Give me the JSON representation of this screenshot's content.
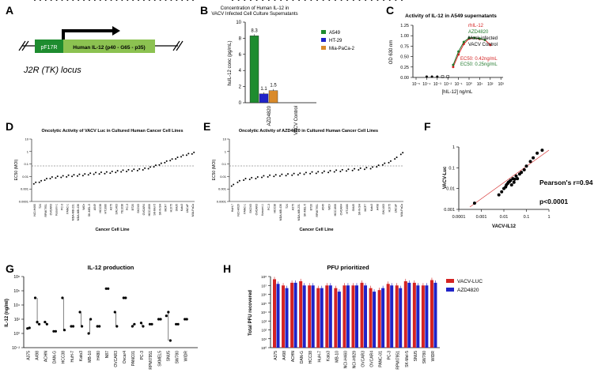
{
  "panels": {
    "A": "A",
    "B": "B",
    "C": "C",
    "D": "D",
    "E": "E",
    "F": "F",
    "G": "G",
    "H": "H"
  },
  "colors": {
    "green": "#1e8c2f",
    "blue": "#1f23c8",
    "orange": "#d98a2b",
    "red": "#d42323",
    "dark_green": "#237a2e"
  },
  "panel_a": {
    "promoter": "pF17R",
    "gene": "Human IL-12 (p40 - G65 - p35)",
    "locus": "J2R (TK) locus"
  },
  "chart_data": [
    {
      "id": "B",
      "type": "bar",
      "title": "Concentration of Human IL-12 in VACV Infected Cell Culture Supernatants",
      "ylabel": "huIL-12 conc (pg/mL)",
      "ylim": [
        0,
        10
      ],
      "yticks": [
        "0",
        "2",
        "4",
        "6",
        "8",
        "10"
      ],
      "categories": [
        "AZD4820",
        "VACV Control"
      ],
      "series": [
        {
          "name": "A549",
          "values": [
            8.3,
            0
          ]
        },
        {
          "name": "HT-29",
          "values": [
            1.1,
            0
          ]
        },
        {
          "name": "Mia-PaCa-2",
          "values": [
            1.5,
            0
          ]
        }
      ],
      "labels": [
        "8.3",
        "1.1",
        "1.5"
      ],
      "legend": [
        "A549",
        "HT-29",
        "Mia-PaCa-2"
      ]
    },
    {
      "id": "C",
      "type": "line",
      "title": "Activity of IL-12 in A549 supernatants",
      "ylabel": "OD 630 nm",
      "xlabel": "[hIL-12] ng/mL",
      "ylim": [
        0,
        1.25
      ],
      "yticks": [
        "0.00",
        "0.25",
        "0.50",
        "0.75",
        "1.00",
        "1.25"
      ],
      "xticks": [
        "10⁻⁵",
        "10⁻⁴",
        "10⁻³",
        "10⁻²",
        "10⁻¹",
        "10⁰",
        "10¹",
        "10²",
        "10³"
      ],
      "legend": [
        "rhIL-12",
        "AZD4820",
        "Mock infected",
        "VACV Control"
      ],
      "annotations": [
        "EC50: 0.42ng/mL",
        "EC50: 0.25ng/mL"
      ],
      "series": [
        {
          "name": "rhIL-12",
          "x": [
            -1.5,
            -1,
            -0.5,
            0,
            0.5,
            1,
            1.5,
            2
          ],
          "y": [
            0.25,
            0.55,
            0.8,
            0.93,
            0.95,
            0.92,
            0.9,
            0.78
          ]
        },
        {
          "name": "AZD4820",
          "x": [
            -1.5,
            -1,
            -0.5,
            0,
            0.5,
            1,
            1.5
          ],
          "y": [
            0.3,
            0.62,
            0.85,
            0.95,
            0.95,
            0.93,
            0.9
          ]
        },
        {
          "name": "Mock infected",
          "x": [
            -4,
            -3.5,
            -3
          ],
          "y": [
            0.02,
            0.02,
            0.02
          ]
        },
        {
          "name": "VACV Control",
          "x": [
            -2.5,
            -2
          ],
          "y": [
            0.02,
            0.02
          ]
        }
      ]
    },
    {
      "id": "D",
      "type": "scatter",
      "title": "Oncolytic Activity of VACV Luc in Cultured Human Cancer Cell Lines",
      "ylabel": "EC50 (MOI)",
      "xlabel": "Cancer Cell Line",
      "yticks": [
        "10",
        "1",
        "0.1",
        "0.01",
        "0.001",
        "0.0001"
      ],
      "categories": [
        "NCI-H460",
        "T24",
        "RPMI7951",
        "OVCAR3",
        "Kasumi-1",
        "PC-3",
        "PANC-1",
        "MDA-MB-231",
        "MDA-MB-436",
        "WiDr",
        "SK-MEL-5",
        "A549",
        "HCC38",
        "HT1080",
        "A375",
        "SW1463",
        "TE1038",
        "PC-3",
        "BT20",
        "SKOV3",
        "OVCAR4",
        "HCC1806",
        "SK-Mel-5",
        "SK-N-SH",
        "MCF7",
        "H1975",
        "SNU5",
        "Kato3",
        "LNCaP",
        "MIA-PaCa"
      ],
      "values": [
        0.003,
        0.004,
        0.006,
        0.008,
        0.009,
        0.01,
        0.011,
        0.012,
        0.013,
        0.014,
        0.016,
        0.018,
        0.019,
        0.02,
        0.022,
        0.025,
        0.028,
        0.03,
        0.033,
        0.035,
        0.04,
        0.05,
        0.07,
        0.1,
        0.15,
        0.22,
        0.3,
        0.45,
        0.6,
        0.75
      ]
    },
    {
      "id": "E",
      "type": "scatter",
      "title": "Oncolytic Activity of AZD4820 in Cultured Human Cancer Cell Lines",
      "ylabel": "EC50 (MOI)",
      "xlabel": "Cancer Cell Line",
      "yticks": [
        "10",
        "1",
        "0.1",
        "0.01",
        "0.001",
        "0.0001"
      ],
      "categories": [
        "HuH-7",
        "NCI-H929",
        "PANC-1",
        "SKOV3",
        "OVCAR3",
        "Kasumi-1",
        "PC-3",
        "HCC38",
        "MDA-MB-436",
        "T24",
        "A375",
        "MDA-MB-231",
        "SK-MEL-5",
        "BT20",
        "RPMI7951",
        "A549",
        "WiDr",
        "HCC1806",
        "OVCAR4",
        "HT1080",
        "SNU5",
        "SK-N-SH",
        "MCF7",
        "Kato3",
        "A498",
        "SW1463",
        "H1975",
        "LNCaP",
        "MIA-PaCa"
      ],
      "values": [
        0.002,
        0.004,
        0.006,
        0.007,
        0.008,
        0.01,
        0.011,
        0.012,
        0.013,
        0.014,
        0.015,
        0.016,
        0.018,
        0.02,
        0.021,
        0.023,
        0.025,
        0.028,
        0.03,
        0.033,
        0.036,
        0.04,
        0.045,
        0.05,
        0.07,
        0.1,
        0.15,
        0.3,
        0.7
      ]
    },
    {
      "id": "F",
      "type": "scatter",
      "xlabel": "VACV-IL12",
      "ylabel": "VACV-Luc",
      "xticks": [
        "0.0001",
        "0.001",
        "0.01",
        "0.1",
        "1"
      ],
      "yticks": [
        "1",
        "0.1",
        "0.01",
        "0.001"
      ],
      "annotations": [
        "Pearson's r=0.94",
        "p<0.0001"
      ],
      "x": [
        0.0005,
        0.006,
        0.008,
        0.01,
        0.012,
        0.013,
        0.015,
        0.016,
        0.018,
        0.02,
        0.022,
        0.025,
        0.028,
        0.03,
        0.035,
        0.04,
        0.05,
        0.06,
        0.08,
        0.1,
        0.15,
        0.2,
        0.3,
        0.5
      ],
      "y": [
        0.002,
        0.005,
        0.007,
        0.01,
        0.012,
        0.015,
        0.018,
        0.02,
        0.022,
        0.025,
        0.015,
        0.03,
        0.02,
        0.028,
        0.04,
        0.03,
        0.05,
        0.06,
        0.08,
        0.12,
        0.2,
        0.3,
        0.5,
        0.7
      ]
    },
    {
      "id": "G",
      "type": "scatter",
      "title": "IL-12 production",
      "ylabel": "IL-12 (ng/ml)",
      "yticks": [
        "10⁸",
        "10⁶",
        "10⁴",
        "10²",
        "10⁰",
        "10⁻²"
      ],
      "categories": [
        "A375",
        "A498",
        "ACHN",
        "DAN-G",
        "HCC38",
        "HuH-7",
        "Kato3",
        "MB-10",
        "H480",
        "N87",
        "OVCAR3",
        "Ovcar4",
        "PANC01",
        "PC-3",
        "RPMI7951",
        "SKMEL5",
        "SNU5",
        "SW780",
        "WIDR"
      ],
      "values": [
        [
          5,
          6
        ],
        [
          100000.0,
          40,
          20
        ],
        [
          40,
          20
        ],
        [
          2,
          2
        ],
        [
          100000.0,
          3
        ],
        [
          10,
          10
        ],
        [
          1000.0,
          10
        ],
        [
          1,
          100
        ],
        [
          10,
          10
        ],
        [
          2000000.0,
          2000000.0
        ],
        [
          1000.0,
          10
        ],
        [
          100000.0,
          100000.0
        ],
        [
          10,
          20
        ],
        [
          30,
          10
        ],
        [
          20,
          20
        ],
        [
          100,
          100
        ],
        [
          300,
          1000.0,
          0.1
        ],
        [
          20,
          20
        ],
        [
          100,
          100
        ]
      ]
    },
    {
      "id": "H",
      "type": "bar",
      "title": "PFU prioritized",
      "ylabel": "Total PFU recovered",
      "yticks": [
        "10⁸",
        "10⁷",
        "10⁶",
        "10⁵",
        "10⁴",
        "10³",
        "10²",
        "10¹",
        "10⁰"
      ],
      "categories": [
        "A375",
        "A498",
        "ACHN",
        "DAN-G",
        "HCC38",
        "HuH-7",
        "Kato3",
        "MB-10",
        "NCI-H460",
        "NCI-H929",
        "OVCAR3",
        "OVCAR4",
        "PANC-01",
        "PC-3",
        "RPMI7951",
        "SK-Mel-5",
        "SNU5",
        "SW780",
        "WIDR"
      ],
      "series": [
        {
          "name": "VACV-LUC",
          "values": [
            50000000.0,
            10000000.0,
            20000000.0,
            30000000.0,
            10000000.0,
            5000000.0,
            10000000.0,
            5000000.0,
            10000000.0,
            10000000.0,
            20000000.0,
            5000000.0,
            3000000.0,
            15000000.0,
            10000000.0,
            30000000.0,
            20000000.0,
            10000000.0,
            40000000.0
          ]
        },
        {
          "name": "AZD4820",
          "values": [
            15000000.0,
            5000000.0,
            20000000.0,
            10000000.0,
            10000000.0,
            5000000.0,
            10000000.0,
            2000000.0,
            10000000.0,
            10000000.0,
            10000000.0,
            2000000.0,
            5000000.0,
            10000000.0,
            5000000.0,
            20000000.0,
            10000000.0,
            10000000.0,
            20000000.0
          ]
        }
      ],
      "legend": [
        "VACV-LUC",
        "AZD4820"
      ]
    }
  ]
}
